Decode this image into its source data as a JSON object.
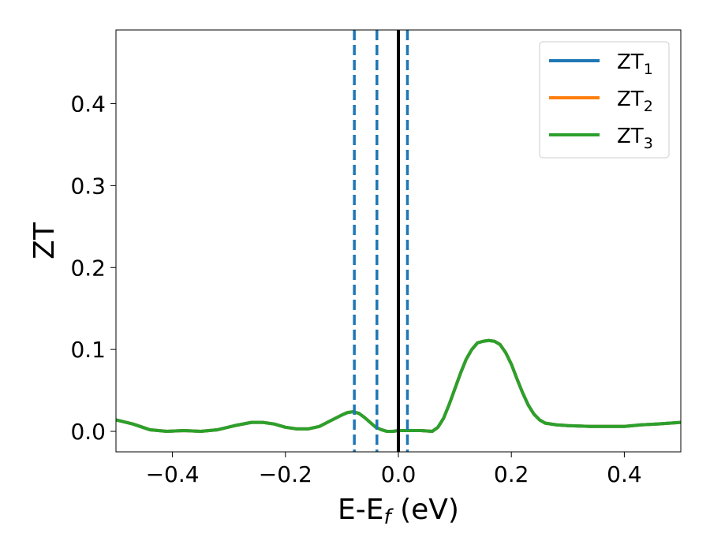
{
  "chart_data": {
    "type": "line",
    "xlabel": "E-E",
    "xlabel_sub": "f",
    "xlabel_unit": " (eV)",
    "ylabel": "ZT",
    "xlim": [
      -0.5,
      0.5
    ],
    "ylim": [
      -0.025,
      0.49
    ],
    "xticks": [
      -0.4,
      -0.2,
      0.0,
      0.2,
      0.4
    ],
    "xtick_labels": [
      "−0.4",
      "−0.2",
      "0.0",
      "0.2",
      "0.4"
    ],
    "yticks": [
      0.0,
      0.1,
      0.2,
      0.3,
      0.4
    ],
    "ytick_labels": [
      "0.0",
      "0.1",
      "0.2",
      "0.3",
      "0.4"
    ],
    "grid": false,
    "legend_position": "top-right",
    "series": [
      {
        "name": "ZT",
        "name_sub": "1",
        "color": "#1f77b4",
        "x": [
          -0.5,
          -0.47,
          -0.44,
          -0.41,
          -0.38,
          -0.35,
          -0.32,
          -0.29,
          -0.26,
          -0.24,
          -0.22,
          -0.2,
          -0.18,
          -0.16,
          -0.14,
          -0.12,
          -0.1,
          -0.09,
          -0.08,
          -0.07,
          -0.06,
          -0.05,
          -0.04,
          -0.03,
          -0.02,
          -0.01,
          0.0,
          0.02,
          0.04,
          0.06,
          0.07,
          0.08,
          0.09,
          0.1,
          0.11,
          0.12,
          0.13,
          0.14,
          0.15,
          0.16,
          0.17,
          0.18,
          0.19,
          0.2,
          0.21,
          0.22,
          0.23,
          0.24,
          0.25,
          0.26,
          0.28,
          0.3,
          0.34,
          0.38,
          0.4,
          0.43,
          0.46,
          0.5
        ],
        "y": [
          0.014,
          0.009,
          0.002,
          0.0,
          0.001,
          0.0,
          0.002,
          0.007,
          0.011,
          0.011,
          0.009,
          0.005,
          0.003,
          0.003,
          0.006,
          0.013,
          0.02,
          0.023,
          0.024,
          0.022,
          0.017,
          0.011,
          0.005,
          0.002,
          0.0,
          0.0,
          0.001,
          0.001,
          0.001,
          0.0,
          0.005,
          0.016,
          0.033,
          0.052,
          0.071,
          0.088,
          0.1,
          0.108,
          0.11,
          0.111,
          0.11,
          0.106,
          0.096,
          0.082,
          0.064,
          0.047,
          0.032,
          0.021,
          0.014,
          0.01,
          0.008,
          0.007,
          0.006,
          0.006,
          0.006,
          0.008,
          0.009,
          0.011
        ]
      },
      {
        "name": "ZT",
        "name_sub": "2",
        "color": "#ff7f0e",
        "x": [
          -0.5,
          -0.47,
          -0.44,
          -0.41,
          -0.38,
          -0.35,
          -0.32,
          -0.29,
          -0.26,
          -0.24,
          -0.22,
          -0.2,
          -0.18,
          -0.16,
          -0.14,
          -0.12,
          -0.1,
          -0.09,
          -0.08,
          -0.07,
          -0.06,
          -0.05,
          -0.04,
          -0.03,
          -0.02,
          -0.01,
          0.0,
          0.02,
          0.04,
          0.06,
          0.07,
          0.08,
          0.09,
          0.1,
          0.11,
          0.12,
          0.13,
          0.14,
          0.15,
          0.16,
          0.17,
          0.18,
          0.19,
          0.2,
          0.21,
          0.22,
          0.23,
          0.24,
          0.25,
          0.26,
          0.28,
          0.3,
          0.34,
          0.38,
          0.4,
          0.43,
          0.46,
          0.5
        ],
        "y": [
          0.014,
          0.009,
          0.002,
          0.0,
          0.001,
          0.0,
          0.002,
          0.007,
          0.011,
          0.011,
          0.009,
          0.005,
          0.003,
          0.003,
          0.006,
          0.013,
          0.02,
          0.023,
          0.024,
          0.022,
          0.017,
          0.011,
          0.005,
          0.002,
          0.0,
          0.0,
          0.001,
          0.001,
          0.001,
          0.0,
          0.005,
          0.016,
          0.033,
          0.052,
          0.071,
          0.088,
          0.1,
          0.108,
          0.11,
          0.111,
          0.11,
          0.106,
          0.096,
          0.082,
          0.064,
          0.047,
          0.032,
          0.021,
          0.014,
          0.01,
          0.008,
          0.007,
          0.006,
          0.006,
          0.006,
          0.008,
          0.009,
          0.011
        ]
      },
      {
        "name": "ZT",
        "name_sub": "3",
        "color": "#2ca02c",
        "x": [
          -0.5,
          -0.47,
          -0.44,
          -0.41,
          -0.38,
          -0.35,
          -0.32,
          -0.29,
          -0.26,
          -0.24,
          -0.22,
          -0.2,
          -0.18,
          -0.16,
          -0.14,
          -0.12,
          -0.1,
          -0.09,
          -0.08,
          -0.07,
          -0.06,
          -0.05,
          -0.04,
          -0.03,
          -0.02,
          -0.01,
          0.0,
          0.02,
          0.04,
          0.06,
          0.07,
          0.08,
          0.09,
          0.1,
          0.11,
          0.12,
          0.13,
          0.14,
          0.15,
          0.16,
          0.17,
          0.18,
          0.19,
          0.2,
          0.21,
          0.22,
          0.23,
          0.24,
          0.25,
          0.26,
          0.28,
          0.3,
          0.34,
          0.38,
          0.4,
          0.43,
          0.46,
          0.5
        ],
        "y": [
          0.014,
          0.009,
          0.002,
          0.0,
          0.001,
          0.0,
          0.002,
          0.007,
          0.011,
          0.011,
          0.009,
          0.005,
          0.003,
          0.003,
          0.006,
          0.013,
          0.02,
          0.023,
          0.024,
          0.022,
          0.017,
          0.011,
          0.005,
          0.002,
          0.0,
          0.0,
          0.001,
          0.001,
          0.001,
          0.0,
          0.005,
          0.016,
          0.033,
          0.052,
          0.071,
          0.088,
          0.1,
          0.108,
          0.11,
          0.111,
          0.11,
          0.106,
          0.096,
          0.082,
          0.064,
          0.047,
          0.032,
          0.021,
          0.014,
          0.01,
          0.008,
          0.007,
          0.006,
          0.006,
          0.006,
          0.008,
          0.009,
          0.011
        ]
      }
    ],
    "vlines": [
      {
        "x": -0.078,
        "style": "dashed",
        "color": "#1f77b4"
      },
      {
        "x": -0.038,
        "style": "dashed",
        "color": "#1f77b4"
      },
      {
        "x": 0.0,
        "style": "solid",
        "color": "#000000"
      },
      {
        "x": 0.016,
        "style": "dashed",
        "color": "#1f77b4"
      }
    ]
  }
}
